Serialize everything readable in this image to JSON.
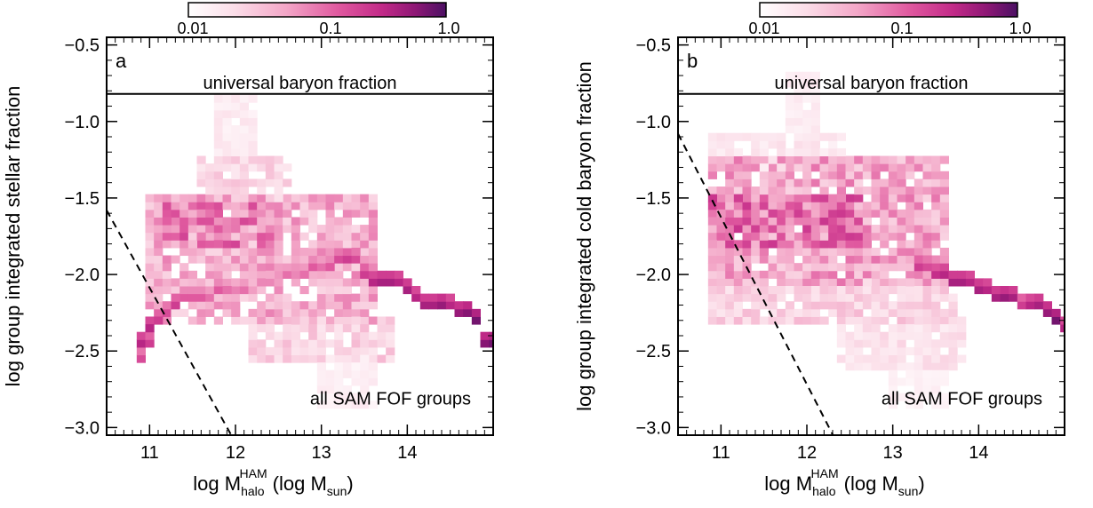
{
  "colorbar": {
    "tick_labels": [
      "0.01",
      "0.1",
      "1.0"
    ],
    "tick_values": [
      0.01,
      0.1,
      1.0
    ],
    "range": [
      0.002,
      1.5
    ],
    "scale": "log",
    "colormap": [
      "#ffffff",
      "#fbdde8",
      "#f3a6c7",
      "#e0599f",
      "#c22a88",
      "#8e1775",
      "#4b1063"
    ]
  },
  "chart_data": [
    {
      "type": "heatmap",
      "panel_label": "a",
      "xlabel": {
        "base": "log M",
        "sup": "HAM",
        "sub": "halo",
        "unit_base": "(log M",
        "unit_sub": "sun",
        "unit_close": ")"
      },
      "ylabel": "log group integrated stellar fraction",
      "xlim": [
        10.5,
        15.0
      ],
      "ylim": [
        -3.05,
        -0.45
      ],
      "x_ticks": [
        11,
        12,
        13,
        14
      ],
      "x_tick_labels": [
        "11",
        "12",
        "13",
        "14"
      ],
      "y_ticks": [
        -3.0,
        -2.5,
        -2.0,
        -1.5,
        -1.0,
        -0.5
      ],
      "y_tick_labels": [
        "−3.0",
        "−2.5",
        "−2.0",
        "−1.5",
        "−1.0",
        "−0.5"
      ],
      "baryon_line": {
        "y": -0.82,
        "label": "universal baryon fraction"
      },
      "dashed_line": {
        "x": [
          10.5,
          12.0
        ],
        "y": [
          -1.58,
          -3.1
        ]
      },
      "annotation": "all SAM FOF groups",
      "bin_size": {
        "dx": 0.1,
        "dy": 0.05
      },
      "bins": {
        "dense_track": [
          [
            10.9,
            -2.55,
            0.55
          ],
          [
            10.9,
            -2.45,
            0.7
          ],
          [
            11.0,
            -2.45,
            0.6
          ],
          [
            11.0,
            -2.35,
            0.7
          ],
          [
            11.1,
            -2.3,
            0.6
          ],
          [
            11.2,
            -2.25,
            0.55
          ],
          [
            11.3,
            -2.2,
            0.6
          ],
          [
            11.4,
            -2.15,
            0.5
          ],
          [
            11.5,
            -2.15,
            0.5
          ],
          [
            11.6,
            -2.15,
            0.5
          ],
          [
            11.7,
            -2.15,
            0.45
          ],
          [
            11.8,
            -2.1,
            0.5
          ],
          [
            11.9,
            -2.1,
            0.45
          ],
          [
            12.0,
            -2.1,
            0.4
          ],
          [
            12.1,
            -2.1,
            0.45
          ],
          [
            12.2,
            -2.1,
            0.35
          ],
          [
            12.3,
            -2.05,
            0.4
          ],
          [
            12.4,
            -2.05,
            0.4
          ],
          [
            12.5,
            -2.05,
            0.35
          ],
          [
            12.6,
            -2.0,
            0.45
          ],
          [
            12.7,
            -2.0,
            0.4
          ],
          [
            12.8,
            -2.0,
            0.45
          ],
          [
            12.9,
            -1.95,
            0.5
          ],
          [
            13.0,
            -1.95,
            0.45
          ],
          [
            13.1,
            -1.95,
            0.5
          ],
          [
            13.2,
            -1.9,
            0.55
          ],
          [
            13.3,
            -1.9,
            0.6
          ],
          [
            13.4,
            -1.9,
            0.55
          ],
          [
            13.5,
            -2.0,
            0.6
          ],
          [
            13.6,
            -2.05,
            0.7
          ],
          [
            13.7,
            -2.05,
            0.75
          ],
          [
            13.8,
            -2.05,
            0.75
          ],
          [
            13.9,
            -2.05,
            0.7
          ],
          [
            14.0,
            -2.1,
            0.75
          ],
          [
            14.1,
            -2.15,
            0.7
          ],
          [
            14.2,
            -2.2,
            0.75
          ],
          [
            14.3,
            -2.2,
            0.75
          ],
          [
            14.4,
            -2.2,
            0.8
          ],
          [
            14.5,
            -2.2,
            0.7
          ],
          [
            14.6,
            -2.25,
            0.8
          ],
          [
            14.7,
            -2.25,
            0.85
          ],
          [
            14.8,
            -2.3,
            0.9
          ],
          [
            14.9,
            -2.45,
            0.85
          ],
          [
            15.0,
            -2.45,
            0.9
          ]
        ],
        "cloud": [
          {
            "x": [
              11.0,
              13.6
            ],
            "y": [
              -2.3,
              -1.5
            ],
            "level": 0.3
          },
          {
            "x": [
              11.2,
              12.4
            ],
            "y": [
              -1.8,
              -1.55
            ],
            "level": 0.42
          },
          {
            "x": [
              11.6,
              12.6
            ],
            "y": [
              -1.5,
              -1.25
            ],
            "level": 0.18
          },
          {
            "x": [
              11.8,
              12.2
            ],
            "y": [
              -1.25,
              -0.85
            ],
            "level": 0.1
          },
          {
            "x": [
              12.2,
              13.8
            ],
            "y": [
              -2.55,
              -2.3
            ],
            "level": 0.2
          },
          {
            "x": [
              13.0,
              13.6
            ],
            "y": [
              -2.85,
              -2.55
            ],
            "level": 0.08
          }
        ]
      }
    },
    {
      "type": "heatmap",
      "panel_label": "b",
      "xlabel": {
        "base": "log M",
        "sup": "HAM",
        "sub": "halo",
        "unit_base": "(log M",
        "unit_sub": "sun",
        "unit_close": ")"
      },
      "ylabel": "log group integrated cold baryon fraction",
      "xlim": [
        10.5,
        15.0
      ],
      "ylim": [
        -3.05,
        -0.45
      ],
      "x_ticks": [
        11,
        12,
        13,
        14
      ],
      "x_tick_labels": [
        "11",
        "12",
        "13",
        "14"
      ],
      "y_ticks": [
        -3.0,
        -2.5,
        -2.0,
        -1.5,
        -1.0,
        -0.5
      ],
      "y_tick_labels": [
        "−3.0",
        "−2.5",
        "−2.0",
        "−1.5",
        "−1.0",
        "−0.5"
      ],
      "baryon_line": {
        "y": -0.82,
        "label": "universal baryon fraction"
      },
      "dashed_line": {
        "x": [
          10.5,
          12.35
        ],
        "y": [
          -1.08,
          -3.1
        ]
      },
      "annotation": "all SAM FOF groups",
      "bin_size": {
        "dx": 0.1,
        "dy": 0.05
      },
      "bins": {
        "dense_track": [
          [
            13.3,
            -1.95,
            0.6
          ],
          [
            13.4,
            -1.95,
            0.55
          ],
          [
            13.5,
            -2.0,
            0.65
          ],
          [
            13.6,
            -2.0,
            0.7
          ],
          [
            13.7,
            -2.05,
            0.75
          ],
          [
            13.8,
            -2.05,
            0.75
          ],
          [
            13.9,
            -2.05,
            0.7
          ],
          [
            14.0,
            -2.1,
            0.75
          ],
          [
            14.1,
            -2.1,
            0.7
          ],
          [
            14.2,
            -2.15,
            0.75
          ],
          [
            14.3,
            -2.15,
            0.8
          ],
          [
            14.4,
            -2.15,
            0.75
          ],
          [
            14.5,
            -2.2,
            0.6
          ],
          [
            14.6,
            -2.2,
            0.7
          ],
          [
            14.7,
            -2.2,
            0.75
          ],
          [
            14.8,
            -2.25,
            0.8
          ],
          [
            14.9,
            -2.3,
            0.9
          ],
          [
            15.0,
            -2.35,
            0.7
          ]
        ],
        "cloud": [
          {
            "x": [
              10.9,
              13.6
            ],
            "y": [
              -2.05,
              -1.25
            ],
            "level": 0.32
          },
          {
            "x": [
              10.9,
              12.6
            ],
            "y": [
              -1.8,
              -1.5
            ],
            "level": 0.45
          },
          {
            "x": [
              10.9,
              12.4
            ],
            "y": [
              -1.3,
              -1.1
            ],
            "level": 0.12
          },
          {
            "x": [
              11.8,
              12.1
            ],
            "y": [
              -1.1,
              -0.7
            ],
            "level": 0.09
          },
          {
            "x": [
              10.9,
              13.7
            ],
            "y": [
              -2.3,
              -2.05
            ],
            "level": 0.2
          },
          {
            "x": [
              12.4,
              13.8
            ],
            "y": [
              -2.6,
              -2.3
            ],
            "level": 0.14
          },
          {
            "x": [
              13.0,
              13.6
            ],
            "y": [
              -2.85,
              -2.6
            ],
            "level": 0.07
          }
        ]
      }
    }
  ]
}
